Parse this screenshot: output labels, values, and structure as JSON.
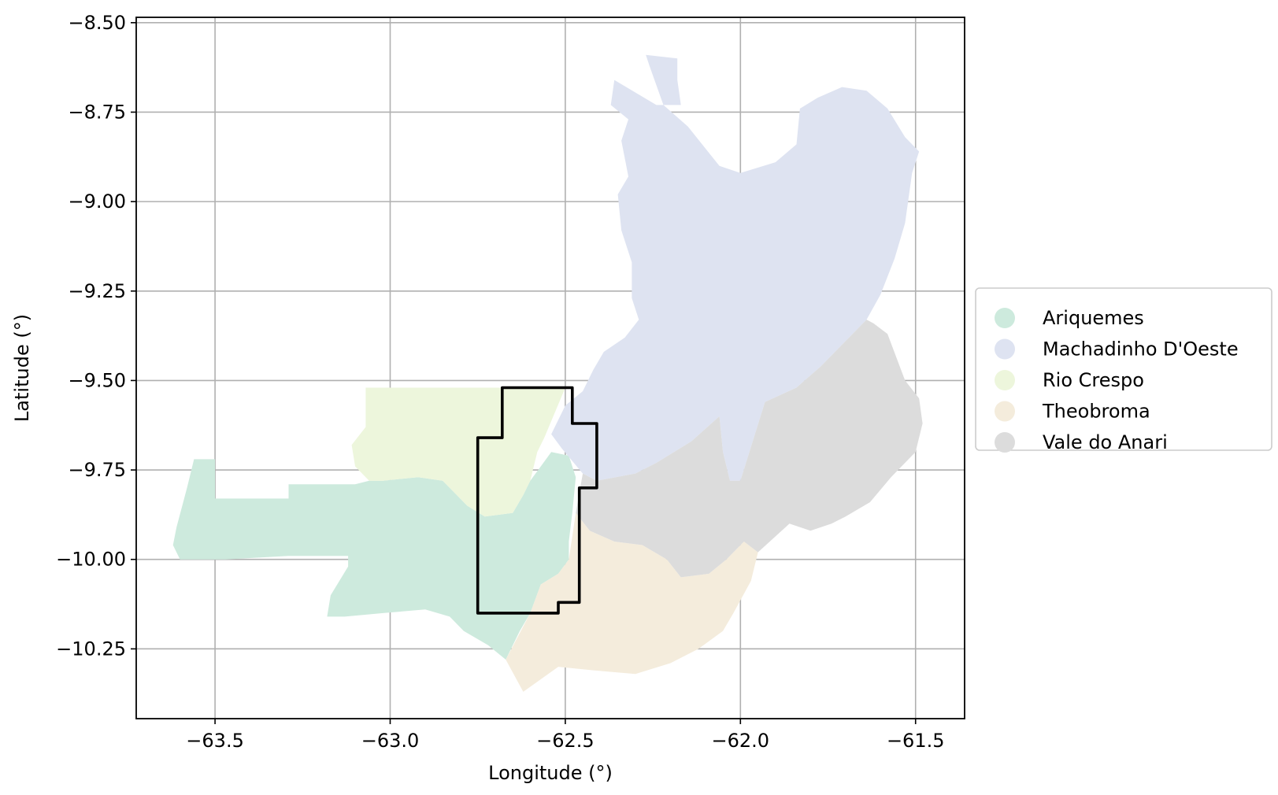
{
  "chart_data": {
    "type": "map",
    "xlabel": "Longitude (°)",
    "ylabel": "Latitude (°)",
    "xlim": [
      -63.725,
      -61.36
    ],
    "ylim": [
      -10.445,
      -8.485
    ],
    "grid": true,
    "x_ticks": [
      {
        "value": -63.5,
        "label": "−63.5"
      },
      {
        "value": -63.0,
        "label": "−63.0"
      },
      {
        "value": -62.5,
        "label": "−62.5"
      },
      {
        "value": -62.0,
        "label": "−62.0"
      },
      {
        "value": -61.5,
        "label": "−61.5"
      }
    ],
    "y_ticks": [
      {
        "value": -8.5,
        "label": "−8.50"
      },
      {
        "value": -8.75,
        "label": "−8.75"
      },
      {
        "value": -9.0,
        "label": "−9.00"
      },
      {
        "value": -9.25,
        "label": "−9.25"
      },
      {
        "value": -9.5,
        "label": "−9.50"
      },
      {
        "value": -9.75,
        "label": "−9.75"
      },
      {
        "value": -10.0,
        "label": "−10.00"
      },
      {
        "value": -10.25,
        "label": "−10.25"
      }
    ],
    "legend_position": "right",
    "regions": [
      {
        "name": "Ariquemes",
        "color": "#cdeadd",
        "coords": [
          [
            -63.56,
            -9.72
          ],
          [
            -63.5,
            -9.72
          ],
          [
            -63.5,
            -9.83
          ],
          [
            -63.29,
            -9.83
          ],
          [
            -63.29,
            -9.79
          ],
          [
            -63.1,
            -9.79
          ],
          [
            -63.06,
            -9.78
          ],
          [
            -63.02,
            -9.78
          ],
          [
            -62.92,
            -9.77
          ],
          [
            -62.85,
            -9.78
          ],
          [
            -62.78,
            -9.85
          ],
          [
            -62.73,
            -9.88
          ],
          [
            -62.65,
            -9.87
          ],
          [
            -62.62,
            -9.82
          ],
          [
            -62.6,
            -9.78
          ],
          [
            -62.57,
            -9.74
          ],
          [
            -62.54,
            -9.7
          ],
          [
            -62.49,
            -9.71
          ],
          [
            -62.47,
            -9.77
          ],
          [
            -62.48,
            -9.87
          ],
          [
            -62.49,
            -9.95
          ],
          [
            -62.49,
            -10.0
          ],
          [
            -62.52,
            -10.04
          ],
          [
            -62.57,
            -10.07
          ],
          [
            -62.6,
            -10.15
          ],
          [
            -62.63,
            -10.2
          ],
          [
            -62.67,
            -10.28
          ],
          [
            -62.72,
            -10.24
          ],
          [
            -62.79,
            -10.2
          ],
          [
            -62.83,
            -10.16
          ],
          [
            -62.9,
            -10.14
          ],
          [
            -63.02,
            -10.15
          ],
          [
            -63.13,
            -10.16
          ],
          [
            -63.18,
            -10.16
          ],
          [
            -63.17,
            -10.1
          ],
          [
            -63.12,
            -10.02
          ],
          [
            -63.12,
            -9.99
          ],
          [
            -63.29,
            -9.99
          ],
          [
            -63.47,
            -10.0
          ],
          [
            -63.6,
            -10.0
          ],
          [
            -63.62,
            -9.96
          ],
          [
            -63.61,
            -9.91
          ],
          [
            -63.58,
            -9.8
          ]
        ]
      },
      {
        "name": "Machadinho D'Oeste",
        "color": "#dee3f1",
        "coords": [
          [
            -62.27,
            -8.59
          ],
          [
            -62.18,
            -8.6
          ],
          [
            -62.18,
            -8.66
          ],
          [
            -62.17,
            -8.73
          ],
          [
            -62.24,
            -8.73
          ],
          [
            -62.36,
            -8.66
          ],
          [
            -62.37,
            -8.73
          ],
          [
            -62.32,
            -8.77
          ],
          [
            -62.34,
            -8.83
          ],
          [
            -62.32,
            -8.93
          ],
          [
            -62.35,
            -8.98
          ],
          [
            -62.34,
            -9.08
          ],
          [
            -62.31,
            -9.17
          ],
          [
            -62.31,
            -9.27
          ],
          [
            -62.29,
            -9.33
          ],
          [
            -62.33,
            -9.38
          ],
          [
            -62.39,
            -9.42
          ],
          [
            -62.42,
            -9.47
          ],
          [
            -62.45,
            -9.53
          ],
          [
            -62.5,
            -9.57
          ],
          [
            -62.54,
            -9.65
          ],
          [
            -62.51,
            -9.69
          ],
          [
            -62.45,
            -9.76
          ],
          [
            -62.41,
            -9.78
          ],
          [
            -62.3,
            -9.76
          ],
          [
            -62.24,
            -9.73
          ],
          [
            -62.14,
            -9.67
          ],
          [
            -62.06,
            -9.6
          ],
          [
            -62.05,
            -9.7
          ],
          [
            -62.03,
            -9.78
          ],
          [
            -62.0,
            -9.78
          ],
          [
            -61.93,
            -9.56
          ],
          [
            -61.84,
            -9.52
          ],
          [
            -61.77,
            -9.46
          ],
          [
            -61.69,
            -9.38
          ],
          [
            -61.64,
            -9.33
          ],
          [
            -61.6,
            -9.26
          ],
          [
            -61.56,
            -9.16
          ],
          [
            -61.53,
            -9.06
          ],
          [
            -61.51,
            -8.92
          ],
          [
            -61.49,
            -8.86
          ],
          [
            -61.53,
            -8.82
          ],
          [
            -61.58,
            -8.74
          ],
          [
            -61.64,
            -8.69
          ],
          [
            -61.71,
            -8.68
          ],
          [
            -61.78,
            -8.71
          ],
          [
            -61.83,
            -8.74
          ],
          [
            -61.84,
            -8.84
          ],
          [
            -61.9,
            -8.89
          ],
          [
            -62.0,
            -8.92
          ],
          [
            -62.06,
            -8.9
          ],
          [
            -62.15,
            -8.79
          ],
          [
            -62.22,
            -8.73
          ],
          [
            -62.26,
            -8.62
          ]
        ]
      },
      {
        "name": "Rio Crespo",
        "color": "#edf6dc",
        "coords": [
          [
            -63.07,
            -9.52
          ],
          [
            -62.5,
            -9.52
          ],
          [
            -62.53,
            -9.59
          ],
          [
            -62.56,
            -9.66
          ],
          [
            -62.58,
            -9.7
          ],
          [
            -62.6,
            -9.78
          ],
          [
            -62.62,
            -9.82
          ],
          [
            -62.65,
            -9.87
          ],
          [
            -62.73,
            -9.88
          ],
          [
            -62.78,
            -9.85
          ],
          [
            -62.85,
            -9.78
          ],
          [
            -62.92,
            -9.77
          ],
          [
            -63.02,
            -9.78
          ],
          [
            -63.06,
            -9.78
          ],
          [
            -63.1,
            -9.74
          ],
          [
            -63.11,
            -9.68
          ],
          [
            -63.07,
            -9.63
          ]
        ]
      },
      {
        "name": "Theobroma",
        "color": "#f4ecdc",
        "coords": [
          [
            -62.47,
            -9.87
          ],
          [
            -62.43,
            -9.92
          ],
          [
            -62.36,
            -9.95
          ],
          [
            -62.28,
            -9.96
          ],
          [
            -62.21,
            -10.0
          ],
          [
            -62.17,
            -10.05
          ],
          [
            -62.09,
            -10.04
          ],
          [
            -62.04,
            -10.0
          ],
          [
            -61.99,
            -9.95
          ],
          [
            -61.95,
            -9.98
          ],
          [
            -61.97,
            -10.06
          ],
          [
            -62.02,
            -10.15
          ],
          [
            -62.05,
            -10.2
          ],
          [
            -62.12,
            -10.25
          ],
          [
            -62.2,
            -10.29
          ],
          [
            -62.3,
            -10.32
          ],
          [
            -62.42,
            -10.31
          ],
          [
            -62.52,
            -10.3
          ],
          [
            -62.62,
            -10.37
          ],
          [
            -62.67,
            -10.28
          ],
          [
            -62.6,
            -10.15
          ],
          [
            -62.57,
            -10.07
          ],
          [
            -62.52,
            -10.04
          ],
          [
            -62.49,
            -10.0
          ]
        ]
      },
      {
        "name": "Vale do Anari",
        "color": "#dcdcdc",
        "coords": [
          [
            -62.45,
            -9.76
          ],
          [
            -62.41,
            -9.78
          ],
          [
            -62.3,
            -9.76
          ],
          [
            -62.24,
            -9.73
          ],
          [
            -62.14,
            -9.67
          ],
          [
            -62.06,
            -9.6
          ],
          [
            -62.05,
            -9.7
          ],
          [
            -62.03,
            -9.78
          ],
          [
            -62.0,
            -9.78
          ],
          [
            -61.93,
            -9.56
          ],
          [
            -61.84,
            -9.52
          ],
          [
            -61.77,
            -9.46
          ],
          [
            -61.69,
            -9.38
          ],
          [
            -61.64,
            -9.33
          ],
          [
            -61.62,
            -9.34
          ],
          [
            -61.58,
            -9.37
          ],
          [
            -61.53,
            -9.5
          ],
          [
            -61.49,
            -9.55
          ],
          [
            -61.48,
            -9.62
          ],
          [
            -61.5,
            -9.7
          ],
          [
            -61.57,
            -9.77
          ],
          [
            -61.63,
            -9.84
          ],
          [
            -61.7,
            -9.88
          ],
          [
            -61.74,
            -9.9
          ],
          [
            -61.8,
            -9.92
          ],
          [
            -61.86,
            -9.9
          ],
          [
            -61.95,
            -9.98
          ],
          [
            -61.99,
            -9.95
          ],
          [
            -62.04,
            -10.0
          ],
          [
            -62.09,
            -10.04
          ],
          [
            -62.17,
            -10.05
          ],
          [
            -62.21,
            -10.0
          ],
          [
            -62.28,
            -9.96
          ],
          [
            -62.36,
            -9.95
          ],
          [
            -62.43,
            -9.92
          ],
          [
            -62.47,
            -9.87
          ]
        ]
      }
    ],
    "outline": {
      "color": "#000000",
      "coords": [
        [
          -62.68,
          -9.52
        ],
        [
          -62.48,
          -9.52
        ],
        [
          -62.48,
          -9.62
        ],
        [
          -62.41,
          -9.62
        ],
        [
          -62.41,
          -9.8
        ],
        [
          -62.46,
          -9.8
        ],
        [
          -62.46,
          -10.12
        ],
        [
          -62.52,
          -10.12
        ],
        [
          -62.52,
          -10.15
        ],
        [
          -62.75,
          -10.15
        ],
        [
          -62.75,
          -9.66
        ],
        [
          -62.68,
          -9.66
        ]
      ]
    }
  }
}
